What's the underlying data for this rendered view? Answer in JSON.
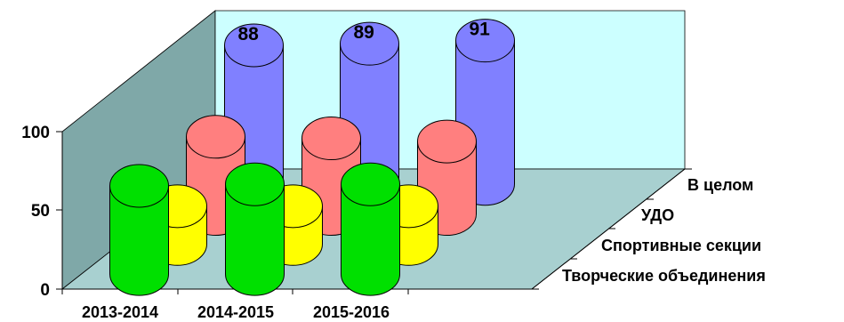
{
  "chart_data": {
    "type": "bar",
    "subtype": "3d-cylinder",
    "categories": [
      "2013-2014",
      "2014-2015",
      "2015-2016"
    ],
    "series": [
      {
        "name": "Творческие объединения",
        "values": [
          56,
          57,
          57
        ],
        "color": "#00e000"
      },
      {
        "name": "Спортивные секции",
        "values": [
          24,
          24,
          24
        ],
        "color": "#ffff00"
      },
      {
        "name": "УДО",
        "values": [
          49,
          48,
          46
        ],
        "color": "#ff7f7f"
      },
      {
        "name": "В целом",
        "values": [
          88,
          89,
          91
        ],
        "color": "#8080ff",
        "data_labels": [
          "88",
          "89",
          "91"
        ]
      }
    ],
    "yticks": [
      "0",
      "50",
      "100"
    ],
    "ylim": [
      0,
      100
    ],
    "walls": {
      "back": "#ccffff",
      "side": "#7fa8a8",
      "floor": "#a8d0d0"
    }
  }
}
